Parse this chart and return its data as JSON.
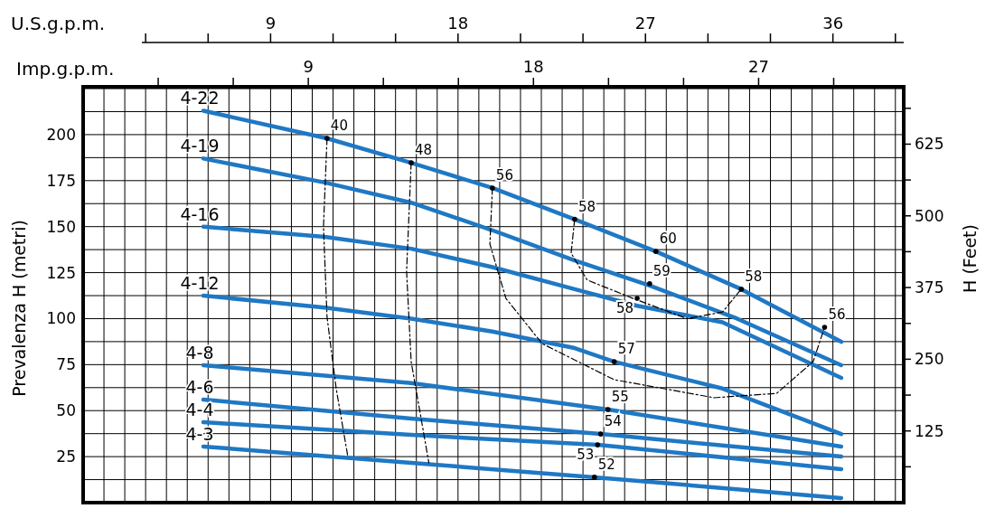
{
  "chart_data": {
    "type": "line",
    "ylabel": "Prevalenza H (metri)",
    "y2label": "H (Feet)",
    "xlabel": "U.S.g.p.m.",
    "x2label": "Imp.g.p.m.",
    "xlim": [
      0,
      39.4
    ],
    "ylim": [
      0,
      226
    ],
    "y2lim": [
      0,
      725
    ],
    "x2lim": [
      0,
      32.8
    ],
    "xticks": [
      {
        "value": 0,
        "label": null
      },
      {
        "value": 1,
        "label": null
      },
      {
        "value": 2,
        "label": null
      },
      {
        "value": 3,
        "label": null
      },
      {
        "value": 4,
        "label": null
      },
      {
        "value": 5,
        "label": null
      },
      {
        "value": 6,
        "label": null
      },
      {
        "value": 7,
        "label": null
      },
      {
        "value": 8,
        "label": null
      },
      9,
      {
        "value": 10,
        "label": null
      },
      {
        "value": 11,
        "label": null
      },
      {
        "value": 12,
        "label": null
      },
      {
        "value": 13,
        "label": null
      },
      {
        "value": 14,
        "label": null
      },
      {
        "value": 15,
        "label": null
      },
      {
        "value": 16,
        "label": null
      },
      {
        "value": 17,
        "label": null
      },
      18,
      {
        "value": 19,
        "label": null
      },
      {
        "value": 20,
        "label": null
      },
      {
        "value": 21,
        "label": null
      },
      {
        "value": 22,
        "label": null
      },
      {
        "value": 23,
        "label": null
      },
      {
        "value": 24,
        "label": null
      },
      {
        "value": 25,
        "label": null
      },
      {
        "value": 26,
        "label": null
      },
      27,
      {
        "value": 28,
        "label": null
      },
      {
        "value": 29,
        "label": null
      },
      {
        "value": 30,
        "label": null
      },
      {
        "value": 31,
        "label": null
      },
      {
        "value": 32,
        "label": null
      },
      {
        "value": 33,
        "label": null
      },
      {
        "value": 34,
        "label": null
      },
      {
        "value": 35,
        "label": null
      },
      36,
      {
        "value": 37,
        "label": null
      },
      {
        "value": 38,
        "label": null
      },
      {
        "value": 39,
        "label": null
      }
    ],
    "yticks": [
      {
        "value": 12.5,
        "label": null
      },
      25,
      {
        "value": 37.5,
        "label": null
      },
      50,
      {
        "value": 62.5,
        "label": null
      },
      75,
      {
        "value": 87.5,
        "label": null
      },
      100,
      {
        "value": 112.5,
        "label": null
      },
      125,
      {
        "value": 137.5,
        "label": null
      },
      150,
      {
        "value": 162.5,
        "label": null
      },
      175,
      {
        "value": 187.5,
        "label": null
      },
      200,
      {
        "value": 212.5,
        "label": null
      },
      {
        "value": 225,
        "label": null
      }
    ],
    "y2ticks": [
      {
        "value": 62.5,
        "label": null
      },
      125,
      {
        "value": 187.5,
        "label": null
      },
      250,
      {
        "value": 312.5,
        "label": null
      },
      375,
      {
        "value": 437.5,
        "label": null
      },
      500,
      {
        "value": 562.5,
        "label": null
      },
      625,
      {
        "value": 687.5,
        "label": null
      }
    ],
    "x2ticks": [
      {
        "value": 3,
        "label": null
      },
      {
        "value": 6,
        "label": null
      },
      9,
      {
        "value": 12,
        "label": null
      },
      {
        "value": 15,
        "label": null
      },
      18,
      {
        "value": 21,
        "label": null
      },
      {
        "value": 24,
        "label": null
      },
      27,
      {
        "value": 30,
        "label": null
      }
    ],
    "grid": true,
    "series": [
      {
        "name": "4-22",
        "color": "#1f78c4",
        "x": [
          5.77,
          11.7,
          15.75,
          19.65,
          23.6,
          27.5,
          31.6,
          36.4
        ],
        "values": [
          213,
          198,
          184.7,
          171,
          154,
          136.5,
          116,
          87.4
        ]
      },
      {
        "name": "4-19",
        "color": "#1f78c4",
        "x": [
          5.77,
          11.6,
          15.75,
          19.65,
          23.6,
          27.2,
          31.4,
          36.4
        ],
        "values": [
          187,
          174,
          163,
          148,
          131.6,
          118,
          100,
          74.7
        ]
      },
      {
        "name": "4-16",
        "color": "#1f78c4",
        "x": [
          5.77,
          11.6,
          15.75,
          19.65,
          23.6,
          26.6,
          30.7,
          36.4
        ],
        "values": [
          150,
          144.4,
          138,
          128,
          116,
          107,
          98,
          67.8
        ]
      },
      {
        "name": "4-12",
        "color": "#1f78c4",
        "x": [
          5.77,
          11.6,
          15.75,
          19.65,
          23.6,
          25.5,
          30.7,
          36.4
        ],
        "values": [
          112.5,
          106,
          100,
          93,
          84,
          76.6,
          62,
          37.3
        ]
      },
      {
        "name": "4-8",
        "color": "#1f78c4",
        "x": [
          5.77,
          11.6,
          15.75,
          25.2,
          36.4
        ],
        "values": [
          74.7,
          69,
          65,
          50.6,
          30.5
        ]
      },
      {
        "name": "4-6",
        "color": "#1f78c4",
        "x": [
          5.77,
          15.75,
          24.85,
          36.4
        ],
        "values": [
          56,
          45.7,
          37.3,
          25
        ]
      },
      {
        "name": "4-4",
        "color": "#1f78c4",
        "x": [
          5.77,
          15.75,
          24.7,
          36.4
        ],
        "values": [
          43.7,
          36.8,
          31.4,
          18.2
        ]
      },
      {
        "name": "4-3",
        "color": "#1f78c4",
        "x": [
          5.77,
          15.75,
          24.55,
          36.4
        ],
        "values": [
          30.5,
          21.6,
          13.8,
          2.5
        ]
      },
      {
        "type": "line",
        "line_style": "dashed",
        "color": "#000000",
        "x": [
          11.71,
          11.54,
          11.71,
          12.15,
          12.71
        ],
        "values": [
          198,
          150,
          101,
          62,
          25
        ]
      },
      {
        "type": "line",
        "line_style": "dashed",
        "color": "#000000",
        "x": [
          15.75,
          15.53,
          15.75,
          16.6
        ],
        "values": [
          184.7,
          125.7,
          76.6,
          21.6
        ]
      },
      {
        "type": "line",
        "line_style": "dashed",
        "color": "#000000",
        "x": [
          19.65,
          19.53,
          20.3,
          22.04,
          25.5,
          30.3,
          33.3,
          35.05,
          35.6
        ],
        "values": [
          171,
          140.5,
          111,
          86.4,
          66.8,
          57,
          59.4,
          76.6,
          95.3
        ]
      },
      {
        "type": "line",
        "line_style": "dashed",
        "color": "#000000",
        "x": [
          23.6,
          23.43,
          24.2,
          26.4,
          29,
          30.7,
          31.6
        ],
        "values": [
          154,
          135.6,
          121,
          111,
          100,
          103.6,
          116
        ]
      }
    ],
    "annotations": [
      {
        "text": "40",
        "x": 11.71,
        "y": 198
      },
      {
        "text": "48",
        "x": 15.75,
        "y": 184.7
      },
      {
        "text": "56",
        "x": 19.65,
        "y": 171
      },
      {
        "text": "58",
        "x": 23.6,
        "y": 154
      },
      {
        "text": "60",
        "x": 27.5,
        "y": 136.5
      },
      {
        "text": "59",
        "x": 27.2,
        "y": 119
      },
      {
        "text": "58",
        "x": 26.6,
        "y": 111
      },
      {
        "text": "58",
        "x": 31.6,
        "y": 116
      },
      {
        "text": "56",
        "x": 35.6,
        "y": 95.3
      },
      {
        "text": "57",
        "x": 25.5,
        "y": 76.6
      },
      {
        "text": "55",
        "x": 25.2,
        "y": 50.6
      },
      {
        "text": "54",
        "x": 24.85,
        "y": 37.3
      },
      {
        "text": "53",
        "x": 24.7,
        "y": 31.4
      },
      {
        "text": "52",
        "x": 24.55,
        "y": 13.8
      }
    ]
  }
}
